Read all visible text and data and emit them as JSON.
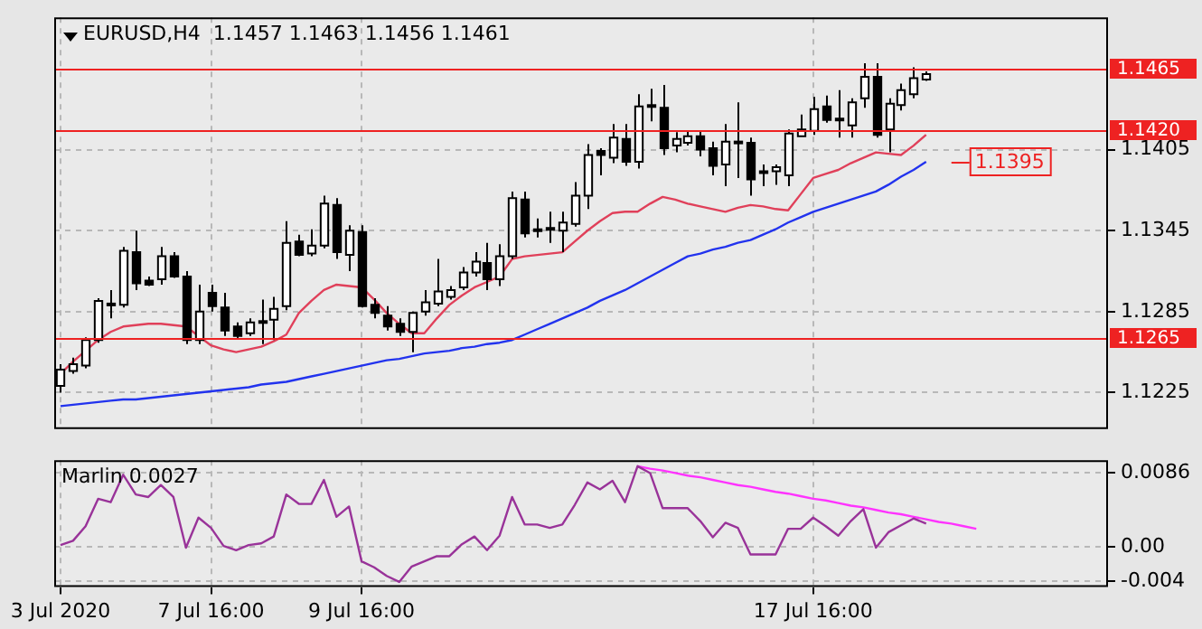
{
  "chart_data": [
    {
      "type": "candlestick",
      "title": "EURUSD,H4  1.1457 1.1463 1.1456 1.1461",
      "categories": [
        null,
        null,
        null,
        null,
        null,
        null,
        null,
        null,
        null,
        null,
        null,
        null,
        null,
        null,
        null,
        null,
        null,
        null,
        null,
        null,
        null,
        null,
        null,
        null,
        null,
        null,
        null,
        null,
        null,
        null,
        null,
        null,
        null,
        null,
        null,
        null,
        null,
        null,
        null,
        null,
        null,
        null,
        null,
        null,
        null,
        null,
        null,
        null,
        null,
        null,
        null,
        null,
        null,
        null,
        null,
        null,
        null,
        null,
        null,
        null,
        null,
        null,
        null,
        null,
        null,
        null,
        null,
        null,
        null,
        null,
        null,
        null,
        null,
        null,
        null,
        null,
        null,
        null,
        null,
        null,
        null,
        null,
        null,
        null
      ],
      "ohlc": [
        [
          1.123,
          1.1246,
          1.1225,
          1.1242
        ],
        [
          1.1241,
          1.1251,
          1.1239,
          1.1246
        ],
        [
          1.1245,
          1.1266,
          1.1243,
          1.1264
        ],
        [
          1.1264,
          1.1295,
          1.1262,
          1.1293
        ],
        [
          1.1291,
          1.1301,
          1.128,
          1.129
        ],
        [
          1.129,
          1.1333,
          1.1288,
          1.133
        ],
        [
          1.1329,
          1.1345,
          1.1301,
          1.1306
        ],
        [
          1.1308,
          1.1311,
          1.1304,
          1.1305
        ],
        [
          1.1309,
          1.1333,
          1.1305,
          1.1326
        ],
        [
          1.1326,
          1.1329,
          1.131,
          1.1311
        ],
        [
          1.1311,
          1.1315,
          1.1261,
          1.1264
        ],
        [
          1.1264,
          1.1305,
          1.1261,
          1.1285
        ],
        [
          1.1299,
          1.1305,
          1.1285,
          1.1289
        ],
        [
          1.1288,
          1.1299,
          1.1267,
          1.1271
        ],
        [
          1.1274,
          1.1277,
          1.1265,
          1.1267
        ],
        [
          1.1269,
          1.128,
          1.1267,
          1.1277
        ],
        [
          1.1277,
          1.1294,
          1.1261,
          1.1278
        ],
        [
          1.1279,
          1.1296,
          1.1264,
          1.1287
        ],
        [
          1.1289,
          1.1352,
          1.1286,
          1.1336
        ],
        [
          1.1337,
          1.1342,
          1.1326,
          1.1327
        ],
        [
          1.1328,
          1.1346,
          1.1326,
          1.1334
        ],
        [
          1.1334,
          1.1371,
          1.1332,
          1.1365
        ],
        [
          1.1364,
          1.1369,
          1.1324,
          1.1329
        ],
        [
          1.1327,
          1.1349,
          1.1315,
          1.1345
        ],
        [
          1.1344,
          1.1349,
          1.1288,
          1.1289
        ],
        [
          1.129,
          1.1295,
          1.128,
          1.1284
        ],
        [
          1.1282,
          1.1289,
          1.1271,
          1.1274
        ],
        [
          1.1276,
          1.128,
          1.1267,
          1.127
        ],
        [
          1.127,
          1.1285,
          1.1255,
          1.1284
        ],
        [
          1.1285,
          1.1301,
          1.1282,
          1.1292
        ],
        [
          1.1291,
          1.1324,
          1.1289,
          1.13
        ],
        [
          1.1296,
          1.1304,
          1.1294,
          1.1301
        ],
        [
          1.1303,
          1.1318,
          1.1301,
          1.1314
        ],
        [
          1.1314,
          1.1329,
          1.1311,
          1.1322
        ],
        [
          1.1321,
          1.1336,
          1.1301,
          1.1309
        ],
        [
          1.1309,
          1.1335,
          1.1304,
          1.1326
        ],
        [
          1.1326,
          1.1374,
          1.1324,
          1.1369
        ],
        [
          1.1368,
          1.1374,
          1.134,
          1.1343
        ],
        [
          1.1346,
          1.1354,
          1.134,
          1.1345
        ],
        [
          1.1346,
          1.1359,
          1.1336,
          1.1347
        ],
        [
          1.1345,
          1.1359,
          1.1329,
          1.1351
        ],
        [
          1.135,
          1.1381,
          1.1348,
          1.1371
        ],
        [
          1.1371,
          1.1409,
          1.1361,
          1.1401
        ],
        [
          1.1404,
          1.1406,
          1.1386,
          1.1401
        ],
        [
          1.1399,
          1.1424,
          1.1395,
          1.1414
        ],
        [
          1.1413,
          1.1424,
          1.1393,
          1.1396
        ],
        [
          1.1396,
          1.1446,
          1.1391,
          1.1437
        ],
        [
          1.1437,
          1.145,
          1.1426,
          1.1438
        ],
        [
          1.1436,
          1.1453,
          1.1401,
          1.1406
        ],
        [
          1.1408,
          1.1418,
          1.1403,
          1.1413
        ],
        [
          1.141,
          1.1419,
          1.1408,
          1.1415
        ],
        [
          1.1415,
          1.1419,
          1.14,
          1.1405
        ],
        [
          1.1406,
          1.1411,
          1.1386,
          1.1393
        ],
        [
          1.1394,
          1.1424,
          1.1378,
          1.1411
        ],
        [
          1.141,
          1.144,
          1.1384,
          1.1411
        ],
        [
          1.141,
          1.1414,
          1.1371,
          1.1383
        ],
        [
          1.1389,
          1.1394,
          1.1378,
          1.1388
        ],
        [
          1.1389,
          1.1394,
          1.1379,
          1.1392
        ],
        [
          1.1386,
          1.142,
          1.1378,
          1.1417
        ],
        [
          1.1415,
          1.1431,
          1.1415,
          1.142
        ],
        [
          1.1419,
          1.1444,
          1.1416,
          1.1435
        ],
        [
          1.1437,
          1.1445,
          1.1425,
          1.1427
        ],
        [
          1.1428,
          1.1449,
          1.1414,
          1.1427
        ],
        [
          1.1423,
          1.1443,
          1.1414,
          1.144
        ],
        [
          1.1443,
          1.1469,
          1.1436,
          1.1459
        ],
        [
          1.1459,
          1.1469,
          1.1414,
          1.1416
        ],
        [
          1.142,
          1.1443,
          1.1403,
          1.1439
        ],
        [
          1.1438,
          1.1454,
          1.1434,
          1.1449
        ],
        [
          1.1446,
          1.1466,
          1.1443,
          1.1458
        ],
        [
          1.1457,
          1.1463,
          1.1456,
          1.1461
        ],
        null,
        null,
        null,
        null,
        null,
        null,
        null,
        null,
        null,
        null,
        null,
        null,
        null,
        null
      ],
      "series": [
        {
          "type": "line",
          "color": "#e0405a",
          "values": [
            1.1239,
            1.1248,
            1.1256,
            1.1264,
            1.127,
            1.1274,
            1.1275,
            1.1276,
            1.1276,
            1.1275,
            1.1274,
            1.1267,
            1.126,
            1.1257,
            1.1255,
            1.1257,
            1.1259,
            1.1263,
            1.1268,
            1.1284,
            1.1293,
            1.1301,
            1.1305,
            1.1304,
            1.1303,
            1.1294,
            1.1284,
            1.1276,
            1.1269,
            1.1269,
            1.128,
            1.129,
            1.1297,
            1.1303,
            1.1307,
            1.1311,
            1.1324,
            1.1326,
            1.1327,
            1.1328,
            1.1329,
            1.1337,
            1.1345,
            1.1352,
            1.1358,
            1.1359,
            1.1359,
            1.1365,
            1.137,
            1.1368,
            1.1365,
            1.1363,
            1.1361,
            1.1359,
            1.1362,
            1.1364,
            1.1363,
            1.1361,
            1.136,
            1.1372,
            1.1384,
            1.1387,
            1.139,
            1.1395,
            1.1399,
            1.1403,
            1.1402,
            1.1401,
            1.1408,
            1.1416,
            null,
            null,
            null,
            null,
            null,
            null,
            null,
            null,
            null,
            null,
            null,
            null,
            null,
            null
          ]
        },
        {
          "type": "line",
          "color": "#2233ee",
          "values": [
            1.1215,
            1.1216,
            1.1217,
            1.1218,
            1.1219,
            1.122,
            1.122,
            1.1221,
            1.1222,
            1.1223,
            1.1224,
            1.1225,
            1.1226,
            1.1227,
            1.1228,
            1.1229,
            1.1231,
            1.1232,
            1.1233,
            1.1235,
            1.1237,
            1.1239,
            1.1241,
            1.1243,
            1.1245,
            1.1247,
            1.1249,
            1.125,
            1.1252,
            1.1254,
            1.1255,
            1.1256,
            1.1258,
            1.1259,
            1.1261,
            1.1262,
            1.1264,
            1.1268,
            1.1272,
            1.1276,
            1.128,
            1.1284,
            1.1288,
            1.1293,
            1.1297,
            1.1301,
            1.1306,
            1.1311,
            1.1316,
            1.1321,
            1.1326,
            1.1328,
            1.1331,
            1.1333,
            1.1336,
            1.1338,
            1.1342,
            1.1346,
            1.1351,
            1.1355,
            1.1359,
            1.1362,
            1.1365,
            1.1368,
            1.1371,
            1.1374,
            1.1379,
            1.1385,
            1.139,
            1.1396,
            null,
            null,
            null,
            null,
            null,
            null,
            null,
            null,
            null,
            null,
            null,
            null,
            null,
            null
          ]
        }
      ],
      "ylim": [
        1.1198,
        1.1503
      ],
      "yticks": [
        1.1225,
        1.1285,
        1.1345,
        1.1405
      ],
      "tick_labels": "y",
      "grid": true,
      "ref_lines": [
        {
          "axis": "y",
          "value": 1.1465,
          "label": "1.1465",
          "color": "#ee2222"
        },
        {
          "axis": "y",
          "value": 1.142,
          "label": "1.1420",
          "color": "#ee2222"
        },
        {
          "axis": "y",
          "value": 1.1265,
          "label": "1.1265",
          "color": "#ee2222"
        }
      ],
      "annotations": [
        "1.1395"
      ]
    },
    {
      "type": "line",
      "title": "Marlin 0.0027",
      "categories": [
        "3 Jul 2020",
        null,
        null,
        null,
        null,
        null,
        null,
        null,
        null,
        null,
        null,
        null,
        "7 Jul 16:00",
        null,
        null,
        null,
        null,
        null,
        null,
        null,
        null,
        null,
        null,
        null,
        "9 Jul 16:00",
        null,
        null,
        null,
        null,
        null,
        null,
        null,
        null,
        null,
        null,
        null,
        null,
        null,
        null,
        null,
        null,
        null,
        null,
        null,
        null,
        null,
        null,
        null,
        null,
        null,
        null,
        null,
        null,
        null,
        null,
        null,
        null,
        null,
        null,
        null,
        "17 Jul 16:00",
        null,
        null,
        null,
        null,
        null,
        null,
        null,
        null,
        null,
        null,
        null,
        null,
        null,
        null,
        null,
        null,
        null,
        null,
        null,
        null,
        null,
        null,
        null
      ],
      "series": [
        {
          "type": "line",
          "color": "#993399",
          "values": [
            0.0002,
            0.0007,
            0.0024,
            0.0056,
            0.0052,
            0.0084,
            0.0061,
            0.0058,
            0.0072,
            0.0058,
            -0.0001,
            0.0034,
            0.0022,
            0.0001,
            -0.0004,
            0.0002,
            0.0004,
            0.0012,
            0.0061,
            0.005,
            0.005,
            0.0078,
            0.0035,
            0.0047,
            -0.0017,
            -0.0024,
            -0.0034,
            -0.0041,
            -0.0023,
            -0.0017,
            -0.0011,
            -0.0011,
            0.0003,
            0.0012,
            -0.0004,
            0.0013,
            0.0058,
            0.0026,
            0.0026,
            0.0022,
            0.0026,
            0.0049,
            0.0075,
            0.0067,
            0.0077,
            0.0052,
            0.0094,
            0.0086,
            0.0045,
            0.0045,
            0.0045,
            0.003,
            0.0011,
            0.0028,
            0.0022,
            -0.0009,
            -0.0009,
            -0.0009,
            0.0021,
            0.0021,
            0.0034,
            0.0024,
            0.0013,
            0.003,
            0.0044,
            -0.0001,
            0.0017,
            0.0025,
            0.0033,
            0.0027,
            null,
            null,
            null,
            null,
            null,
            null,
            null,
            null,
            null,
            null,
            null,
            null,
            null,
            null
          ]
        },
        {
          "type": "line",
          "color": "#ff33ff",
          "values": [
            null,
            null,
            null,
            null,
            null,
            null,
            null,
            null,
            null,
            null,
            null,
            null,
            null,
            null,
            null,
            null,
            null,
            null,
            null,
            null,
            null,
            null,
            null,
            null,
            null,
            null,
            null,
            null,
            null,
            null,
            null,
            null,
            null,
            null,
            null,
            null,
            null,
            null,
            null,
            null,
            null,
            null,
            null,
            null,
            null,
            null,
            0.0094,
            0.0091,
            0.0089,
            0.0086,
            0.0083,
            0.0081,
            0.0078,
            0.0075,
            0.0072,
            0.007,
            0.0067,
            0.0064,
            0.0062,
            0.0059,
            0.0056,
            0.0054,
            0.0051,
            0.0048,
            0.0046,
            0.0043,
            0.004,
            0.0038,
            0.0035,
            0.0032,
            0.0029,
            0.0027,
            0.0024,
            0.0021,
            null,
            null,
            null,
            null,
            null,
            null,
            null,
            null,
            null,
            null
          ]
        }
      ],
      "ylim": [
        -0.0047,
        0.0101
      ],
      "yticks": [
        0.0086,
        {
          "value": 0,
          "label": "0.00"
        },
        -0.004
      ],
      "grid": true
    }
  ]
}
